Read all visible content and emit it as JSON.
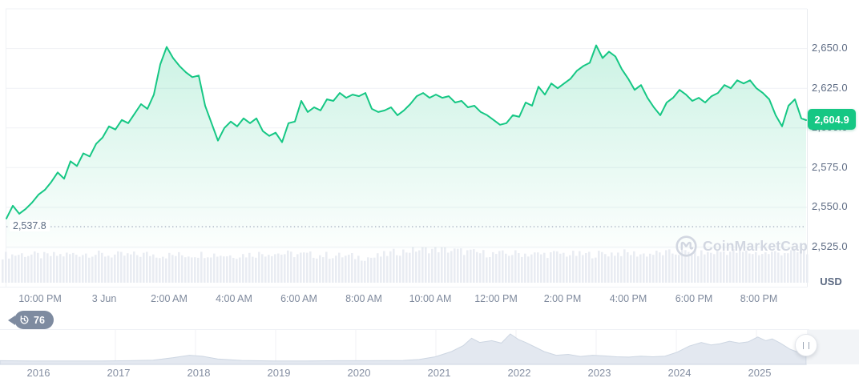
{
  "ui": {
    "watermark": "CoinMarketCap",
    "currency_label": "USD",
    "price_badge": "2,604.9",
    "low_watermark_label": "2,537.8",
    "history_badge_count": "76",
    "colors": {
      "accent_green": "#16c784",
      "area_fill_top": "rgba(22,199,132,0.22)",
      "area_fill_bottom": "rgba(22,199,132,0.01)",
      "gridline": "#eff1f5",
      "dotted_low_line": "#a9b2c1",
      "volume_bar": "#e9ecf2",
      "mini_chart_fill": "#e3e8f0",
      "mini_chart_line": "#cdd6e2",
      "history_badge_bg": "#7e8ba0",
      "axis_text": "#5d6b83",
      "muted_text": "#7f8a9d",
      "watermark_text": "#d2d7e1"
    }
  },
  "chart_data": {
    "type": "area",
    "unit": "USD",
    "current_price": 2604.9,
    "day_low": 2537.8,
    "y_axis": {
      "labels": [
        "2,650.0",
        "2,625.0",
        "2,600.0",
        "2,575.0",
        "2,550.0",
        "2,525.0"
      ],
      "label_values": [
        2650,
        2625,
        2600,
        2575,
        2550,
        2525
      ],
      "gridline_values": [
        2675,
        2650,
        2625,
        2600,
        2575,
        2550,
        2525
      ],
      "range": [
        2525,
        2675
      ]
    },
    "x_axis": {
      "labels": [
        "10:00 PM",
        "3 Jun",
        "2:00 AM",
        "4:00 AM",
        "6:00 AM",
        "8:00 AM",
        "10:00 AM",
        "12:00 PM",
        "2:00 PM",
        "4:00 PM",
        "6:00 PM",
        "8:00 PM"
      ]
    },
    "series": [
      {
        "name": "price",
        "points": [
          [
            8,
            2543
          ],
          [
            16,
            2551
          ],
          [
            24,
            2546
          ],
          [
            32,
            2549
          ],
          [
            40,
            2553
          ],
          [
            48,
            2558
          ],
          [
            56,
            2561
          ],
          [
            64,
            2566
          ],
          [
            72,
            2572
          ],
          [
            80,
            2568
          ],
          [
            88,
            2579
          ],
          [
            96,
            2576
          ],
          [
            104,
            2584
          ],
          [
            112,
            2582
          ],
          [
            120,
            2590
          ],
          [
            128,
            2594
          ],
          [
            136,
            2601
          ],
          [
            144,
            2599
          ],
          [
            152,
            2605
          ],
          [
            160,
            2603
          ],
          [
            168,
            2609
          ],
          [
            176,
            2615
          ],
          [
            184,
            2612
          ],
          [
            192,
            2621
          ],
          [
            200,
            2640
          ],
          [
            208,
            2651
          ],
          [
            216,
            2644
          ],
          [
            224,
            2639
          ],
          [
            232,
            2635
          ],
          [
            240,
            2632
          ],
          [
            248,
            2633
          ],
          [
            256,
            2614
          ],
          [
            264,
            2603
          ],
          [
            272,
            2592
          ],
          [
            280,
            2600
          ],
          [
            288,
            2604
          ],
          [
            296,
            2601
          ],
          [
            304,
            2606
          ],
          [
            312,
            2603
          ],
          [
            320,
            2606
          ],
          [
            328,
            2598
          ],
          [
            336,
            2595
          ],
          [
            344,
            2597
          ],
          [
            352,
            2591
          ],
          [
            360,
            2603
          ],
          [
            368,
            2604
          ],
          [
            376,
            2617
          ],
          [
            384,
            2610
          ],
          [
            392,
            2613
          ],
          [
            400,
            2611
          ],
          [
            408,
            2618
          ],
          [
            416,
            2617
          ],
          [
            424,
            2622
          ],
          [
            432,
            2619
          ],
          [
            440,
            2621
          ],
          [
            448,
            2620
          ],
          [
            456,
            2622
          ],
          [
            464,
            2612
          ],
          [
            472,
            2610
          ],
          [
            480,
            2611
          ],
          [
            488,
            2613
          ],
          [
            496,
            2608
          ],
          [
            504,
            2611
          ],
          [
            512,
            2615
          ],
          [
            520,
            2620
          ],
          [
            528,
            2622
          ],
          [
            536,
            2619
          ],
          [
            544,
            2621
          ],
          [
            552,
            2619
          ],
          [
            560,
            2620
          ],
          [
            568,
            2616
          ],
          [
            576,
            2617
          ],
          [
            584,
            2613
          ],
          [
            592,
            2614
          ],
          [
            600,
            2610
          ],
          [
            608,
            2608
          ],
          [
            616,
            2605
          ],
          [
            624,
            2602
          ],
          [
            632,
            2603
          ],
          [
            640,
            2608
          ],
          [
            648,
            2607
          ],
          [
            656,
            2616
          ],
          [
            664,
            2614
          ],
          [
            672,
            2626
          ],
          [
            680,
            2621
          ],
          [
            688,
            2628
          ],
          [
            696,
            2625
          ],
          [
            704,
            2628
          ],
          [
            712,
            2631
          ],
          [
            720,
            2636
          ],
          [
            728,
            2639
          ],
          [
            736,
            2641
          ],
          [
            744,
            2652
          ],
          [
            752,
            2644
          ],
          [
            760,
            2648
          ],
          [
            768,
            2645
          ],
          [
            776,
            2637
          ],
          [
            784,
            2631
          ],
          [
            792,
            2624
          ],
          [
            800,
            2627
          ],
          [
            808,
            2619
          ],
          [
            816,
            2613
          ],
          [
            824,
            2608
          ],
          [
            832,
            2616
          ],
          [
            840,
            2619
          ],
          [
            848,
            2624
          ],
          [
            856,
            2621
          ],
          [
            864,
            2617
          ],
          [
            872,
            2619
          ],
          [
            880,
            2616
          ],
          [
            888,
            2620
          ],
          [
            896,
            2622
          ],
          [
            904,
            2627
          ],
          [
            912,
            2625
          ],
          [
            920,
            2630
          ],
          [
            928,
            2628
          ],
          [
            936,
            2630
          ],
          [
            944,
            2625
          ],
          [
            952,
            2622
          ],
          [
            960,
            2618
          ],
          [
            968,
            2608
          ],
          [
            976,
            2601
          ],
          [
            984,
            2614
          ],
          [
            992,
            2618
          ],
          [
            1000,
            2606
          ],
          [
            1006,
            2604.9
          ]
        ]
      }
    ],
    "volume_profile": [
      0.5,
      0.55,
      0.48,
      0.52,
      0.58,
      0.52,
      0.5,
      0.55,
      0.5,
      0.52,
      0.56,
      0.5,
      0.54,
      0.6,
      0.55,
      0.52,
      0.5,
      0.45,
      0.42,
      0.62,
      0.72,
      0.74,
      0.68,
      0.6,
      0.55,
      0.58,
      0.54,
      0.57,
      0.52,
      0.56,
      0.6,
      0.55,
      0.58,
      0.62,
      0.58,
      0.66,
      0.62,
      0.58,
      0.64,
      0.6
    ],
    "range_selector": {
      "years": [
        "2016",
        "2017",
        "2018",
        "2019",
        "2020",
        "2021",
        "2022",
        "2023",
        "2024",
        "2025"
      ],
      "shape": [
        [
          0,
          0.12
        ],
        [
          0.04,
          0.11
        ],
        [
          0.08,
          0.11
        ],
        [
          0.12,
          0.11
        ],
        [
          0.16,
          0.12
        ],
        [
          0.19,
          0.14
        ],
        [
          0.215,
          0.22
        ],
        [
          0.235,
          0.3
        ],
        [
          0.25,
          0.27
        ],
        [
          0.27,
          0.18
        ],
        [
          0.3,
          0.13
        ],
        [
          0.34,
          0.11
        ],
        [
          0.38,
          0.11
        ],
        [
          0.42,
          0.12
        ],
        [
          0.46,
          0.12
        ],
        [
          0.5,
          0.13
        ],
        [
          0.52,
          0.16
        ],
        [
          0.54,
          0.25
        ],
        [
          0.56,
          0.42
        ],
        [
          0.575,
          0.62
        ],
        [
          0.585,
          0.86
        ],
        [
          0.595,
          0.72
        ],
        [
          0.61,
          0.78
        ],
        [
          0.622,
          0.7
        ],
        [
          0.633,
          1.0
        ],
        [
          0.643,
          0.82
        ],
        [
          0.652,
          0.72
        ],
        [
          0.663,
          0.58
        ],
        [
          0.675,
          0.42
        ],
        [
          0.69,
          0.3
        ],
        [
          0.705,
          0.33
        ],
        [
          0.72,
          0.26
        ],
        [
          0.735,
          0.3
        ],
        [
          0.75,
          0.28
        ],
        [
          0.765,
          0.25
        ],
        [
          0.78,
          0.24
        ],
        [
          0.795,
          0.27
        ],
        [
          0.81,
          0.25
        ],
        [
          0.825,
          0.27
        ],
        [
          0.84,
          0.4
        ],
        [
          0.855,
          0.6
        ],
        [
          0.87,
          0.72
        ],
        [
          0.882,
          0.64
        ],
        [
          0.893,
          0.68
        ],
        [
          0.905,
          0.76
        ],
        [
          0.917,
          0.7
        ],
        [
          0.928,
          0.74
        ],
        [
          0.94,
          0.9
        ],
        [
          0.95,
          0.78
        ],
        [
          0.958,
          0.84
        ],
        [
          0.968,
          0.7
        ],
        [
          0.98,
          0.5
        ],
        [
          0.99,
          0.4
        ],
        [
          1.0,
          0.34
        ]
      ]
    }
  }
}
